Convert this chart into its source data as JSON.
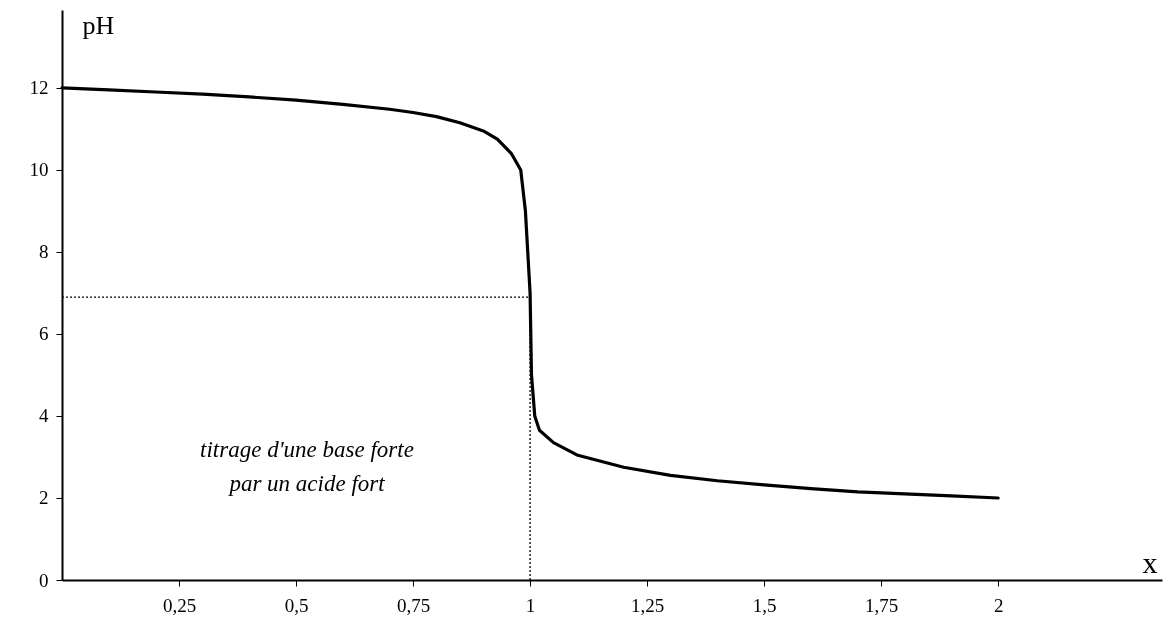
{
  "chart_data": {
    "type": "line",
    "xlabel": "x",
    "ylabel": "pH",
    "x": [
      0,
      0.1,
      0.2,
      0.3,
      0.4,
      0.5,
      0.6,
      0.7,
      0.75,
      0.8,
      0.85,
      0.9,
      0.93,
      0.96,
      0.98,
      0.99,
      0.995,
      1.0,
      1.003,
      1.01,
      1.02,
      1.05,
      1.1,
      1.2,
      1.3,
      1.4,
      1.5,
      1.6,
      1.7,
      1.8,
      1.9,
      2
    ],
    "series": [
      {
        "color": "#000000",
        "values": [
          12,
          11.95,
          11.9,
          11.85,
          11.78,
          11.7,
          11.6,
          11.48,
          11.4,
          11.3,
          11.15,
          10.95,
          10.75,
          10.4,
          10.0,
          9.0,
          8,
          7,
          5,
          4.0,
          3.65,
          3.35,
          3.05,
          2.75,
          2.55,
          2.42,
          2.32,
          2.23,
          2.15,
          2.1,
          2.05,
          2.0
        ]
      }
    ],
    "xlim": [
      0,
      2.35
    ],
    "ylim": [
      0,
      13.9
    ],
    "xticks": [
      {
        "value": 0.25,
        "label": "0,25"
      },
      {
        "value": 0.5,
        "label": "0,5"
      },
      {
        "value": 0.75,
        "label": "0,75"
      },
      1,
      {
        "value": 1.25,
        "label": "1,25"
      },
      {
        "value": 1.5,
        "label": "1,5"
      },
      {
        "value": 1.75,
        "label": "1,75"
      },
      2
    ],
    "yticks": [
      0,
      2,
      4,
      6,
      8,
      10,
      12
    ],
    "ref_lines": [
      {
        "axis": "y",
        "value": 6.9,
        "line_style": "dotted",
        "color": "#000000"
      },
      {
        "axis": "x",
        "value": 1,
        "line_style": "dotted",
        "color": "#000000"
      }
    ],
    "annotations": [
      "titrage d'une base forte\npar un acide fort"
    ],
    "grid": false,
    "marker": "none",
    "line_style": "solid"
  }
}
